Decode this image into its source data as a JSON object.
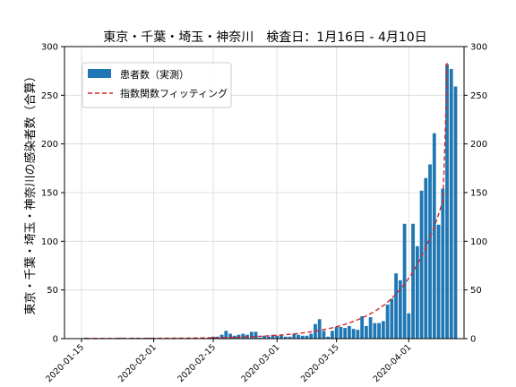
{
  "chart_data": {
    "type": "bar",
    "title": "東京・千葉・埼玉・神奈川　検査日：1月16日 - 4月10日",
    "ylabel": "東京・千葉・埼玉・神奈川の感染者数（合算）",
    "xlabel": "",
    "x_start": "2020-01-16",
    "x_end": "2020-04-10",
    "xlim": [
      "2020-01-11",
      "2020-04-14"
    ],
    "ylim": [
      0,
      300
    ],
    "yticks": [
      0,
      50,
      100,
      150,
      200,
      250,
      300
    ],
    "xticks": [
      "2020-01-15",
      "2020-02-01",
      "2020-02-15",
      "2020-03-01",
      "2020-03-15",
      "2020-04-01"
    ],
    "grid": true,
    "legend_position": "upper-left",
    "bar_color": "#1f77b4",
    "fit_color": "#d62728",
    "series": [
      {
        "name": "患者数（実測）",
        "type": "bar",
        "values": [
          1,
          0,
          0,
          0,
          0,
          0,
          0,
          0,
          1,
          1,
          0,
          1,
          0,
          0,
          0,
          1,
          1,
          0,
          0,
          0,
          0,
          1,
          0,
          0,
          0,
          0,
          0,
          0,
          0,
          1,
          2,
          2,
          4,
          8,
          5,
          3,
          4,
          5,
          4,
          7,
          7,
          1,
          3,
          2,
          4,
          3,
          4,
          2,
          2,
          5,
          4,
          3,
          3,
          5,
          15,
          20,
          8,
          2,
          8,
          12,
          12,
          11,
          13,
          10,
          9,
          23,
          13,
          22,
          16,
          16,
          18,
          35,
          41,
          67,
          60,
          118,
          26,
          118,
          95,
          152,
          165,
          179,
          211,
          117,
          154,
          282,
          277,
          259
        ],
        "start_date": "2020-01-16"
      },
      {
        "name": "指数関数フィッティング",
        "type": "line",
        "style": "dashed",
        "x": [
          "2020-01-16",
          "2020-01-26",
          "2020-02-05",
          "2020-02-15",
          "2020-02-25",
          "2020-03-06",
          "2020-03-11",
          "2020-03-16",
          "2020-03-21",
          "2020-03-26",
          "2020-03-29",
          "2020-04-01",
          "2020-04-03",
          "2020-04-05",
          "2020-04-07",
          "2020-04-09",
          "2020-04-10"
        ],
        "y": [
          0.1,
          0.2,
          0.4,
          0.9,
          2.2,
          5.3,
          8.4,
          13.4,
          21.3,
          33.9,
          45.9,
          62.1,
          76.3,
          93.7,
          115.1,
          141.4,
          286
        ]
      }
    ]
  }
}
